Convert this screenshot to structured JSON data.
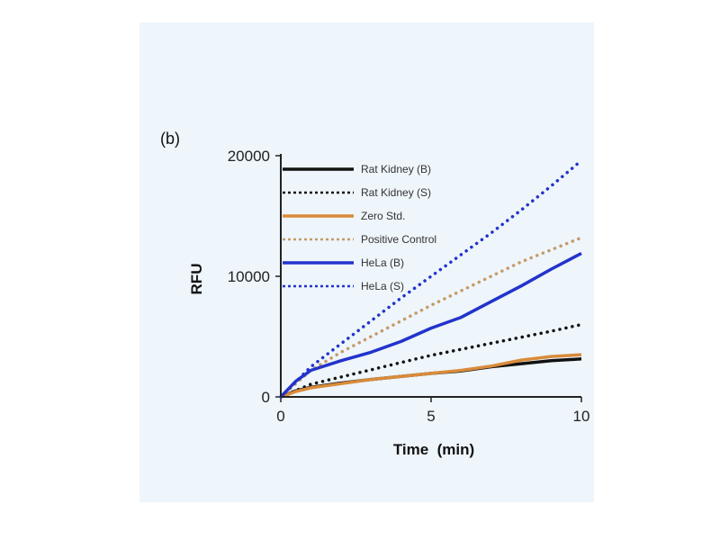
{
  "chart_data": {
    "type": "line",
    "panel_label": "(b)",
    "xlabel": "Time  (min)",
    "ylabel": "RFU",
    "xlim": [
      0,
      10
    ],
    "ylim": [
      0,
      20000
    ],
    "xticks": [
      "0",
      "5",
      "10"
    ],
    "yticks": [
      "0",
      "10000",
      "20000"
    ],
    "legend_position": "top-left",
    "grid": false,
    "series": [
      {
        "name": "Rat Kidney (B)",
        "color": "#111111",
        "style": "solid",
        "x": [
          0,
          0.5,
          1,
          2,
          3,
          4,
          5,
          6,
          7,
          8,
          9,
          10
        ],
        "y": [
          0,
          500,
          800,
          1150,
          1450,
          1700,
          1950,
          2150,
          2500,
          2750,
          3000,
          3150
        ]
      },
      {
        "name": "Rat Kidney (S)",
        "color": "#111111",
        "style": "dotted",
        "x": [
          0,
          1,
          2,
          3,
          4,
          5,
          6,
          7,
          8,
          9,
          10
        ],
        "y": [
          0,
          1050,
          1650,
          2250,
          2850,
          3450,
          3950,
          4450,
          4950,
          5450,
          6000
        ]
      },
      {
        "name": "Zero Std.",
        "color": "#d98b3a",
        "style": "solid",
        "x": [
          0,
          0.5,
          1,
          2,
          3,
          4,
          5,
          6,
          7,
          8,
          9,
          10
        ],
        "y": [
          0,
          450,
          750,
          1100,
          1450,
          1700,
          1950,
          2200,
          2550,
          3050,
          3350,
          3500
        ]
      },
      {
        "name": "Positive Control",
        "color": "#c49a66",
        "style": "dotted",
        "x": [
          0,
          1,
          2,
          3,
          4,
          5,
          6,
          7,
          8,
          9,
          10
        ],
        "y": [
          0,
          2200,
          3700,
          5000,
          6300,
          7600,
          8800,
          10000,
          11200,
          12200,
          13200
        ]
      },
      {
        "name": "HeLa (B)",
        "color": "#2233cc",
        "style": "solid",
        "x": [
          0,
          0.5,
          1,
          2,
          3,
          4,
          5,
          6,
          7,
          8,
          9,
          10
        ],
        "y": [
          0,
          1300,
          2200,
          3000,
          3700,
          4600,
          5700,
          6600,
          7900,
          9200,
          10600,
          11900
        ]
      },
      {
        "name": "HeLa (S)",
        "color": "#2233cc",
        "style": "dotted",
        "x": [
          0,
          1,
          2,
          3,
          4,
          5,
          6,
          7,
          8,
          9,
          10
        ],
        "y": [
          0,
          2500,
          4400,
          6300,
          8200,
          10000,
          11800,
          13600,
          15500,
          17500,
          19600
        ]
      }
    ]
  }
}
